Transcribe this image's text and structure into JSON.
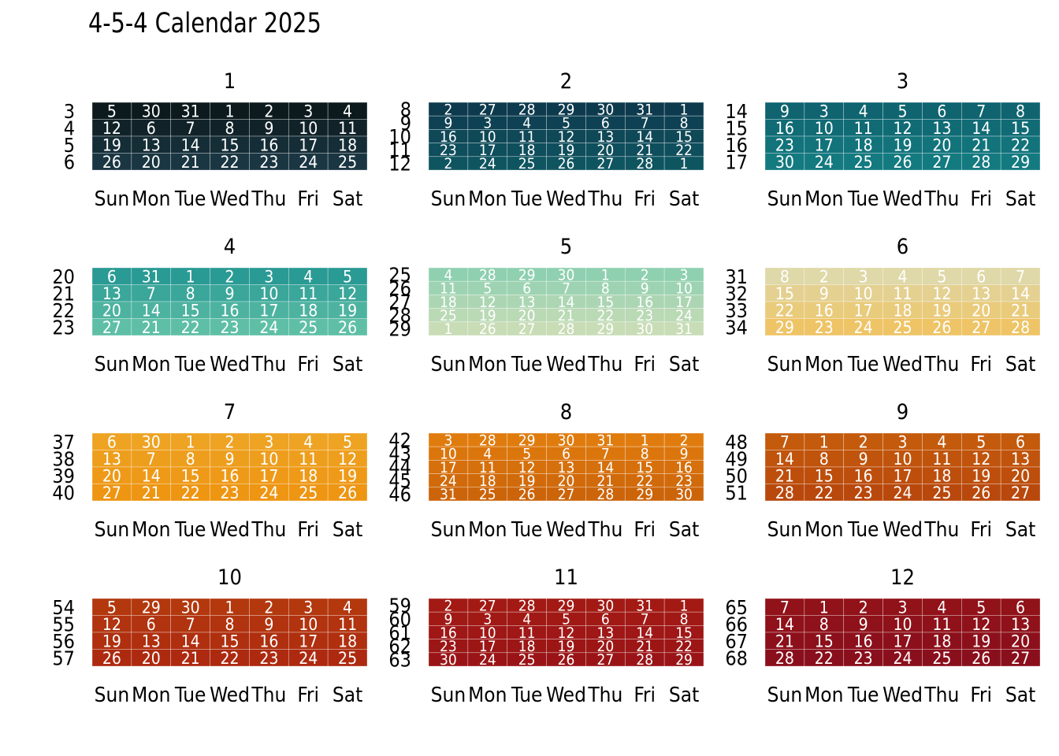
{
  "chart_data": {
    "type": "heatmap",
    "title": "4-5-4 Calendar 2025",
    "day_labels": [
      "Sun",
      "Mon",
      "Tue",
      "Wed",
      "Thu",
      "Fri",
      "Sat"
    ],
    "fill_note": "cell fill color encodes fiscal month",
    "months": [
      {
        "label": "1",
        "color": "#0c1a1d",
        "color_end": "#1a3642",
        "weeks": [
          3,
          4,
          5,
          6
        ],
        "days": [
          [
            5,
            30,
            31,
            1,
            2,
            3,
            4
          ],
          [
            12,
            6,
            7,
            8,
            9,
            10,
            11
          ],
          [
            19,
            13,
            14,
            15,
            16,
            17,
            18
          ],
          [
            26,
            20,
            21,
            22,
            23,
            24,
            25
          ]
        ]
      },
      {
        "label": "2",
        "color": "#0e3a4e",
        "color_end": "#0f5560",
        "weeks": [
          8,
          9,
          10,
          11,
          12
        ],
        "days": [
          [
            2,
            27,
            28,
            29,
            30,
            31,
            1
          ],
          [
            9,
            3,
            4,
            5,
            6,
            7,
            8
          ],
          [
            16,
            10,
            11,
            12,
            13,
            14,
            15
          ],
          [
            23,
            17,
            18,
            19,
            20,
            21,
            22
          ],
          [
            2,
            24,
            25,
            26,
            27,
            28,
            1
          ]
        ]
      },
      {
        "label": "3",
        "color": "#0f6470",
        "color_end": "#137a80",
        "weeks": [
          14,
          15,
          16,
          17
        ],
        "days": [
          [
            9,
            3,
            4,
            5,
            6,
            7,
            8
          ],
          [
            16,
            10,
            11,
            12,
            13,
            14,
            15
          ],
          [
            23,
            17,
            18,
            19,
            20,
            21,
            22
          ],
          [
            30,
            24,
            25,
            26,
            27,
            28,
            29
          ]
        ]
      },
      {
        "label": "4",
        "color": "#2a9a94",
        "color_end": "#5ebfa6",
        "weeks": [
          20,
          21,
          22,
          23
        ],
        "days": [
          [
            6,
            31,
            1,
            2,
            3,
            4,
            5
          ],
          [
            13,
            7,
            8,
            9,
            10,
            11,
            12
          ],
          [
            20,
            14,
            15,
            16,
            17,
            18,
            19
          ],
          [
            27,
            21,
            22,
            23,
            24,
            25,
            26
          ]
        ]
      },
      {
        "label": "5",
        "color": "#8fd0b0",
        "color_end": "#c8dcb6",
        "weeks": [
          25,
          26,
          27,
          28,
          29
        ],
        "days": [
          [
            4,
            28,
            29,
            30,
            1,
            2,
            3
          ],
          [
            11,
            5,
            6,
            7,
            8,
            9,
            10
          ],
          [
            18,
            12,
            13,
            14,
            15,
            16,
            17
          ],
          [
            25,
            19,
            20,
            21,
            22,
            23,
            24
          ],
          [
            1,
            26,
            27,
            28,
            29,
            30,
            31
          ]
        ]
      },
      {
        "label": "6",
        "color": "#dfd8a8",
        "color_end": "#eec466",
        "weeks": [
          31,
          32,
          33,
          34
        ],
        "days": [
          [
            8,
            2,
            3,
            4,
            5,
            6,
            7
          ],
          [
            15,
            9,
            10,
            11,
            12,
            13,
            14
          ],
          [
            22,
            16,
            17,
            18,
            19,
            20,
            21
          ],
          [
            29,
            23,
            24,
            25,
            26,
            27,
            28
          ]
        ]
      },
      {
        "label": "7",
        "color": "#eea323",
        "color_end": "#ee9512",
        "weeks": [
          37,
          38,
          39,
          40
        ],
        "days": [
          [
            6,
            30,
            1,
            2,
            3,
            4,
            5
          ],
          [
            13,
            7,
            8,
            9,
            10,
            11,
            12
          ],
          [
            20,
            14,
            15,
            16,
            17,
            18,
            19
          ],
          [
            27,
            21,
            22,
            23,
            24,
            25,
            26
          ]
        ]
      },
      {
        "label": "8",
        "color": "#e07c0e",
        "color_end": "#cc6409",
        "weeks": [
          42,
          43,
          44,
          45,
          46
        ],
        "days": [
          [
            3,
            28,
            29,
            30,
            31,
            1,
            2
          ],
          [
            10,
            4,
            5,
            6,
            7,
            8,
            9
          ],
          [
            17,
            11,
            12,
            13,
            14,
            15,
            16
          ],
          [
            24,
            18,
            19,
            20,
            21,
            22,
            23
          ],
          [
            31,
            25,
            26,
            27,
            28,
            29,
            30
          ]
        ]
      },
      {
        "label": "9",
        "color": "#c45a0c",
        "color_end": "#b9480c",
        "weeks": [
          48,
          49,
          50,
          51
        ],
        "days": [
          [
            7,
            1,
            2,
            3,
            4,
            5,
            6
          ],
          [
            14,
            8,
            9,
            10,
            11,
            12,
            13
          ],
          [
            21,
            15,
            16,
            17,
            18,
            19,
            20
          ],
          [
            28,
            22,
            23,
            24,
            25,
            26,
            27
          ]
        ]
      },
      {
        "label": "10",
        "color": "#b3380e",
        "color_end": "#ad2a10",
        "weeks": [
          54,
          55,
          56,
          57
        ],
        "days": [
          [
            5,
            29,
            30,
            1,
            2,
            3,
            4
          ],
          [
            12,
            6,
            7,
            8,
            9,
            10,
            11
          ],
          [
            19,
            13,
            14,
            15,
            16,
            17,
            18
          ],
          [
            26,
            20,
            21,
            22,
            23,
            24,
            25
          ]
        ]
      },
      {
        "label": "11",
        "color": "#a31a14",
        "color_end": "#9a1417",
        "weeks": [
          59,
          60,
          61,
          62,
          63
        ],
        "days": [
          [
            2,
            27,
            28,
            29,
            30,
            31,
            1
          ],
          [
            9,
            3,
            4,
            5,
            6,
            7,
            8
          ],
          [
            16,
            10,
            11,
            12,
            13,
            14,
            15
          ],
          [
            23,
            17,
            18,
            19,
            20,
            21,
            22
          ],
          [
            30,
            24,
            25,
            26,
            27,
            28,
            29
          ]
        ]
      },
      {
        "label": "12",
        "color": "#911219",
        "color_end": "#8a0f1c",
        "weeks": [
          65,
          66,
          67,
          68
        ],
        "days": [
          [
            7,
            1,
            2,
            3,
            4,
            5,
            6
          ],
          [
            14,
            8,
            9,
            10,
            11,
            12,
            13
          ],
          [
            21,
            15,
            16,
            17,
            18,
            19,
            20
          ],
          [
            28,
            22,
            23,
            24,
            25,
            26,
            27
          ]
        ]
      }
    ]
  }
}
